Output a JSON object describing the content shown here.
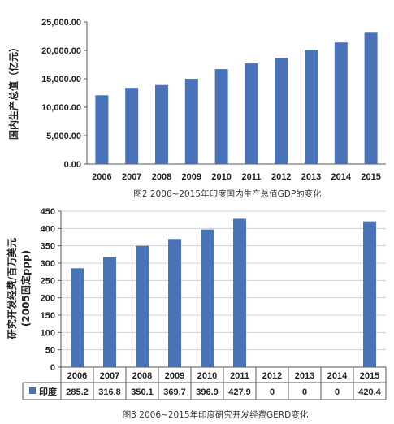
{
  "chart_data": [
    {
      "type": "bar",
      "title": "",
      "caption": "图2  2006~2015年印度国内生产总值GDP的变化",
      "xlabel": "",
      "ylabel": "国内生产总值（亿元）",
      "categories": [
        "2006",
        "2007",
        "2008",
        "2009",
        "2010",
        "2011",
        "2012",
        "2013",
        "2014",
        "2015"
      ],
      "values": [
        12100,
        13400,
        13900,
        15000,
        16700,
        17700,
        18700,
        20000,
        21400,
        23100
      ],
      "ylim": [
        0,
        25000
      ],
      "yticks": [
        "0.00",
        "5,000.00",
        "10,000.00",
        "15,000.00",
        "20,000.00",
        "25,000.00"
      ],
      "grid": false,
      "bar_color": "#4a72b8"
    },
    {
      "type": "bar",
      "title": "",
      "caption": "图3  2006~2015年印度研究开发经费GERD变化",
      "xlabel": "",
      "ylabel": "研究开发经费/百万美元（2005固定ppp）",
      "ylabel_lines": [
        "研究开发经费/百万美元",
        "(2005固定ppp)"
      ],
      "categories": [
        "2006",
        "2007",
        "2008",
        "2009",
        "2010",
        "2011",
        "2012",
        "2013",
        "2014",
        "2015"
      ],
      "series": [
        {
          "name": "印度",
          "values": [
            285.2,
            316.8,
            350.1,
            369.7,
            396.9,
            427.9,
            0,
            0,
            0,
            420.4
          ]
        }
      ],
      "table_values": [
        "285.2",
        "316.8",
        "350.1",
        "369.7",
        "396.9",
        "427.9",
        "0",
        "0",
        "0",
        "420.4"
      ],
      "ylim": [
        0,
        450
      ],
      "yticks": [
        "0",
        "50",
        "100",
        "150",
        "200",
        "250",
        "300",
        "350",
        "400",
        "450"
      ],
      "grid": true,
      "bar_color": "#4a72b8"
    }
  ]
}
